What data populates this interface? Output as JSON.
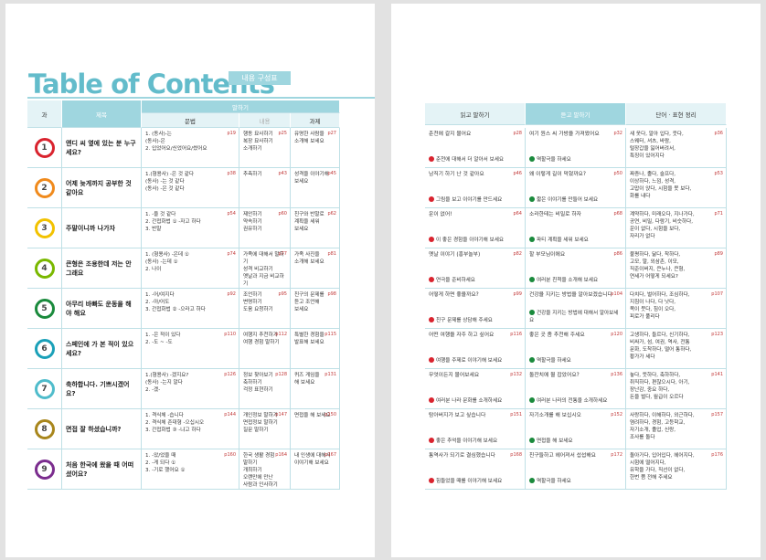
{
  "title": "Table of Contents",
  "badge": "내용 구성표",
  "left": {
    "headers": {
      "lesson": "과",
      "title": "제목",
      "speaking": "말하기",
      "grammar": "문법",
      "content": "내용",
      "task": "과제"
    },
    "rows": [
      {
        "num": "1",
        "title": "앤디 씨 옆에 있는 분 누구세요?",
        "grammar": [
          "1. (동사)-는",
          "(동사)-은",
          "2. 입었어요/신었어요/썼어요"
        ],
        "grammar_page": "p19",
        "content": [
          "행동 묘사하기",
          "복장 묘사하기",
          "소개하기"
        ],
        "content_page": "p25",
        "task": [
          "유명한 사람을",
          "소개해 보세요"
        ],
        "task_page": "p27"
      },
      {
        "num": "2",
        "title": "어제 늦게까지 공부한 것 같아요",
        "grammar": [
          "1.(형용사) -은 것 같다",
          "(동사) -는 것 같다",
          "(동사) -은 것 같다"
        ],
        "grammar_page": "p38",
        "content": [
          "추측하기"
        ],
        "content_page": "p43",
        "task": [
          "성격을 이야기해",
          "보세요"
        ],
        "task_page": "p45"
      },
      {
        "num": "3",
        "title": "주말이니까 나가자",
        "grammar": [
          "1. -을 것 같다",
          "2. 간접화법 ① -자고 하다",
          "3. 반말"
        ],
        "grammar_page": "p54",
        "content": [
          "제안하기",
          "약속하기",
          "권유하기"
        ],
        "content_page": "p60",
        "task": [
          "친구와 반말로",
          "계획을 세워",
          "보세요"
        ],
        "task_page": "p62"
      },
      {
        "num": "4",
        "title": "큰형은 조용한데 저는 안 그래요",
        "grammar": [
          "1. (형용사) -은데 ①",
          "(동사) -는데 ①",
          "2. 나이"
        ],
        "grammar_page": "p74",
        "content": [
          "가족에 대해서 말하기",
          "성격 비교하기",
          "옛날과 지금 비교하기"
        ],
        "content_page": "p77",
        "task": [
          "가족 사진을",
          "소개해 보세요"
        ],
        "task_page": "p81"
      },
      {
        "num": "5",
        "title": "아무리 바빠도 운동을 해야 해요",
        "grammar": [
          "1. -어/여지다",
          "2. -아/어도",
          "3. 간접화법 ② -으라고 하다"
        ],
        "grammar_page": "p92",
        "content": [
          "조언하기",
          "변명하기",
          "도움 요청하기"
        ],
        "content_page": "p95",
        "task": [
          "친구의 문제를",
          "듣고 조언해",
          "보세요"
        ],
        "task_page": "p98"
      },
      {
        "num": "6",
        "title": "스페인에 가 본 적이 있으세요?",
        "grammar": [
          "1. -은 적이 있다",
          "2. -도 ~ -도"
        ],
        "grammar_page": "p110",
        "content": [
          "여행지 추천하기",
          "여행 경험 말하기"
        ],
        "content_page": "p112",
        "task": [
          "특별한 경험을",
          "발표해 보세요"
        ],
        "task_page": "p115"
      },
      {
        "num": "7",
        "title": "축하합니다. 기쁘시겠어요?",
        "grammar": [
          "1.(형용사) -겠지요?",
          "(동사) -는지 알다",
          "2. -겠-"
        ],
        "grammar_page": "p126",
        "content": [
          "정보 찾아보기",
          "축하하기",
          "걱정 표현하기"
        ],
        "content_page": "p128",
        "task": [
          "퀴즈 게임을",
          "해 보세요"
        ],
        "task_page": "p131"
      },
      {
        "num": "8",
        "title": "면접 잘 하셨습니까?",
        "grammar": [
          "1. 격식체 -습니다",
          "2. 격식체 존대형 -으십시오",
          "3. 간접화법 ③ -냐고 하다"
        ],
        "grammar_page": "p144",
        "content": [
          "개인정보 말하기",
          "면접정보 말하기",
          "질문 말하기"
        ],
        "content_page": "p147",
        "task": [
          "면접을 해 보세요"
        ],
        "task_page": "p150"
      },
      {
        "num": "9",
        "title": "처음 한국에 왔을 때 어떠셨어요?",
        "grammar": [
          "1. -았/었을 때",
          "2. -게 되다 ①",
          "3. -기로 했어요 ①"
        ],
        "grammar_page": "p160",
        "content": [
          "한국 생활 경험",
          "말하기",
          "개최하기",
          "오랜만에 만난",
          "사람과 인사하기"
        ],
        "content_page": "p164",
        "task": [
          "내 인생에 대해서",
          "이야기해 보세요"
        ],
        "task_page": "p167"
      }
    ]
  },
  "right": {
    "headers": [
      "읽고 말하기",
      "듣고 말하기",
      "단어 · 표현 정리"
    ],
    "rows": [
      {
        "reading": "춘천에 갈지 물어요",
        "reading_page": "p28",
        "reading_task": "춘천에 대해서 더 알아서 보세요",
        "listening": "여기 원스 씨 가방을 가져왔어요",
        "listening_page": "p32",
        "listening_task": "역할극을 하세요",
        "vocab": [
          "새 옷다, 알아 입다, 웃다,",
          "스웨터, 셔츠, 바람,",
          "털장갑을 잃어버려서,",
          "특징이 있어지다"
        ],
        "vocab_page": "p36"
      },
      {
        "reading": "남직기 하기 난 것 같아요",
        "reading_page": "p46",
        "reading_task": "그림을 보고 이야기를 만드세요",
        "listening": "왜 이렇게 길이 막혔까요?",
        "listening_page": "p50",
        "listening_task": "짧은 이야기를 만들어 보세요",
        "vocab": [
          "짜증나, 졸다, 슬프다,",
          "이상하다, 느낌, 성격,",
          "고맙이 앉다, 시험을 못 보다,",
          "화를 내다"
        ],
        "vocab_page": "p53"
      },
      {
        "reading": "운이 없어!",
        "reading_page": "p64",
        "reading_task": "이 좋은 경험을 이야기해 보세요",
        "listening": "소라한테는 비밀로 하자",
        "listening_page": "p68",
        "listening_task": "파티 계획을 세워 보세요",
        "vocab": [
          "계약하다, 미래오다, 지나가다,",
          "공연, 비밀, 다람기, 비슷하다,",
          "운이 없다, 시험을 보다,",
          "자리가 없다"
        ],
        "vocab_page": "p71"
      },
      {
        "reading": "옛날 이야기 (흥부놀부)",
        "reading_page": "p82",
        "reading_task": "연극을 준비하세요",
        "listening": "할 부모님이에요",
        "listening_page": "p86",
        "listening_task": "여러분 친척을 소개해 보세요",
        "vocab": [
          "불평하다, 닮다, 착하다,",
          "고모, 말, 외삼촌, 이모,",
          "직준이버지, 큰누나, 큰형,",
          "연세가 어떻게 되세요?"
        ],
        "vocab_page": "p89"
      },
      {
        "reading": "어떻게 하면 좋을까요?",
        "reading_page": "p99",
        "reading_task": "친구 문제를 상담해 주세요",
        "listening": "건강을 지키는 방법을 알아보겠습니다",
        "listening_page": "p104",
        "listening_task": "건강을 지키는 방법에 대해서 알아보세요",
        "vocab": [
          "다치다, 벌어하다, 조심하다,",
          "지침이 나다, 다 낫다,",
          "목이 붓다, 침이 오다,",
          "피로가 풀리다"
        ],
        "vocab_page": "p107"
      },
      {
        "reading": "어떤 여행을 자주 하고 싶어요",
        "reading_page": "p116",
        "reading_task": "여행을 주제로 이야기해 보세요",
        "listening": "좋은 곳 좀 추천해 주세요",
        "listening_page": "p120",
        "listening_task": "역할극을 하세요",
        "vocab": [
          "고생하다, 들르다, 신기하다,",
          "비싸가, 섬, 여권, 역사, 전통",
          "문화, 도착하다, 떨어 통하다,",
          "황가가 세다"
        ],
        "vocab_page": "p123"
      },
      {
        "reading": "무엇이든지 물어보세요",
        "reading_page": "p132",
        "reading_task": "여러분 나라 문화를 소개하세요",
        "listening": "돌잔치에 뭘 잡았어요?",
        "listening_page": "p136",
        "listening_task": "여러분 나라의 전통을 소개하세요",
        "vocab": [
          "놓다, 뜻하다, 축하하다,",
          "취직하다, 편찮으시다, 아기,",
          "장난감, 중요 하다,",
          "돈을 벌다, 월급이 오르다"
        ],
        "vocab_page": "p141"
      },
      {
        "reading": "탐아버지가 보고 싶습니다",
        "reading_page": "p151",
        "reading_task": "좋은 추억을 이야기해 보세요",
        "listening": "자기소개를 해 보십시오",
        "listening_page": "p152",
        "listening_task": "면접을 해 보세요",
        "vocab": [
          "사랑하다, 이해하다, 외근하다,",
          "염려하다, 경험, 고등학교,",
          "자기소개, 졸업, 신랑,",
          "조사를 돌다"
        ],
        "vocab_page": "p157"
      },
      {
        "reading": "통역사가 되기로 결심했습니다",
        "reading_page": "p168",
        "reading_task": "힘들었을 때를 이야기해 보세요",
        "listening": "친구들하고 헤어져서 섭섭해요",
        "listening_page": "p172",
        "listening_task": "역할극을 하세요",
        "vocab": [
          "돌아가다, 입어입다, 헤어지다,",
          "시험에 떨어지다,",
          "유학을 가다, 직선이 없다,",
          "한번 쯤 전해 주세요"
        ],
        "vocab_page": "p176"
      }
    ]
  }
}
